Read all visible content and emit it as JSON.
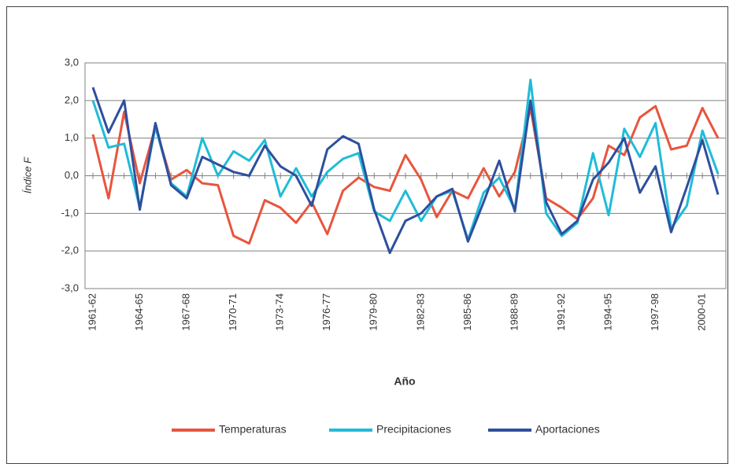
{
  "chart_data": {
    "type": "line",
    "xlabel": "Año",
    "ylabel": "Índice F",
    "categories": [
      "1961-62",
      null,
      null,
      "1964-65",
      null,
      null,
      "1967-68",
      null,
      null,
      "1970-71",
      null,
      null,
      "1973-74",
      null,
      null,
      "1976-77",
      null,
      null,
      "1979-80",
      null,
      null,
      "1982-83",
      null,
      null,
      "1985-86",
      null,
      null,
      "1988-89",
      null,
      null,
      "1991-92",
      null,
      null,
      "1994-95",
      null,
      null,
      "1997-98",
      null,
      null,
      "2000-01",
      null
    ],
    "series": [
      {
        "name": "Temperaturas",
        "color": "#e8553e",
        "values": [
          1.1,
          -0.6,
          1.7,
          -0.2,
          1.3,
          -0.1,
          0.15,
          -0.2,
          -0.25,
          -1.6,
          -1.8,
          -0.65,
          -0.85,
          -1.25,
          -0.7,
          -1.55,
          -0.4,
          -0.05,
          -0.3,
          -0.4,
          0.55,
          -0.1,
          -1.1,
          -0.4,
          -0.6,
          0.2,
          -0.55,
          0.1,
          1.8,
          -0.6,
          -0.85,
          -1.15,
          -0.6,
          0.8,
          0.55,
          1.55,
          1.85,
          0.7,
          0.8,
          1.8,
          1.0
        ]
      },
      {
        "name": "Precipitaciones",
        "color": "#1fbcd8",
        "values": [
          2.0,
          0.75,
          0.85,
          -0.85,
          1.3,
          -0.2,
          -0.55,
          1.0,
          0.0,
          0.65,
          0.4,
          0.95,
          -0.55,
          0.2,
          -0.55,
          0.1,
          0.45,
          0.6,
          -0.95,
          -1.2,
          -0.4,
          -1.2,
          -0.55,
          -0.4,
          -1.7,
          -0.45,
          -0.05,
          -0.9,
          2.55,
          -1.0,
          -1.6,
          -1.25,
          0.6,
          -1.05,
          1.25,
          0.5,
          1.4,
          -1.4,
          -0.8,
          1.2,
          0.05
        ]
      },
      {
        "name": "Aportaciones",
        "color": "#2e4f9e",
        "values": [
          2.35,
          1.15,
          2.0,
          -0.9,
          1.4,
          -0.25,
          -0.6,
          0.5,
          0.3,
          0.1,
          0.0,
          0.8,
          0.25,
          0.0,
          -0.8,
          0.7,
          1.05,
          0.85,
          -0.9,
          -2.05,
          -1.2,
          -1.0,
          -0.55,
          -0.35,
          -1.75,
          -0.7,
          0.4,
          -0.95,
          2.0,
          -0.7,
          -1.55,
          -1.2,
          -0.1,
          0.35,
          1.0,
          -0.45,
          0.25,
          -1.5,
          -0.3,
          0.95,
          -0.5
        ]
      }
    ],
    "ylim": [
      -3,
      3
    ],
    "yticks": [
      {
        "value": -3,
        "label": "-3,0"
      },
      {
        "value": -2,
        "label": "-2,0"
      },
      {
        "value": -1,
        "label": "-1,0"
      },
      {
        "value": 0,
        "label": "0,0"
      },
      {
        "value": 1,
        "label": "1,0"
      },
      {
        "value": 2,
        "label": "2,0"
      },
      {
        "value": 3,
        "label": "3,0"
      }
    ],
    "grid": true,
    "legend": "bottom"
  }
}
